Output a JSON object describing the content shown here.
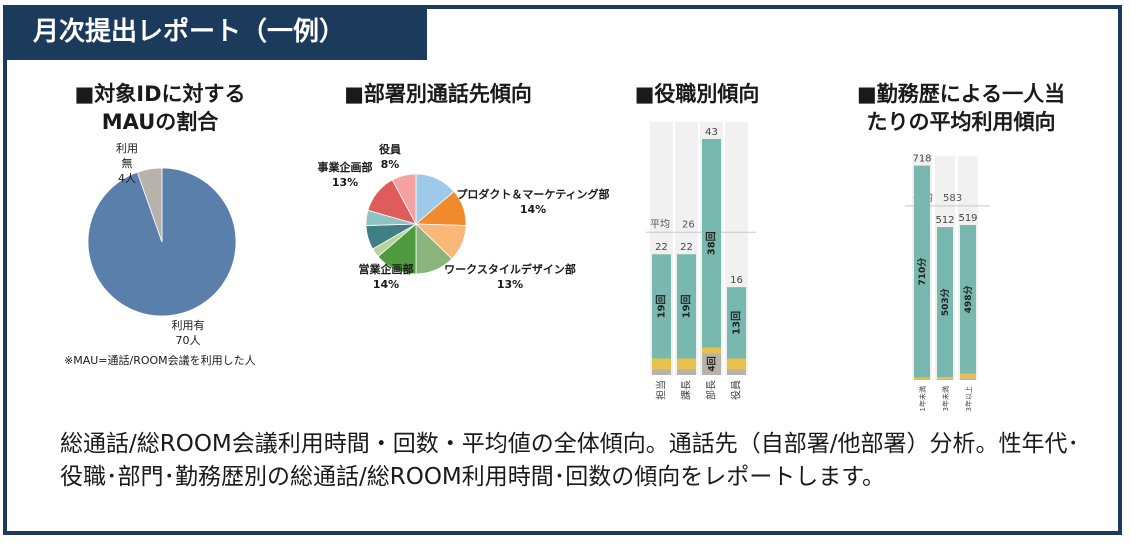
{
  "header": {
    "title": "月次提出レポート（一例）"
  },
  "sections": {
    "mau": {
      "line1": "■対象IDに対する",
      "line2": "MAUの割合"
    },
    "dept": {
      "title": "■部署別通話先傾向"
    },
    "role": {
      "title": "■役職別傾向"
    },
    "tenure": {
      "line1": "■勤務歴による一人当",
      "line2": "たりの平均利用傾向"
    }
  },
  "footnote": "※MAU=通話/ROOM会議を利用した人",
  "description": "総通話/総ROOM会議利用時間・回数・平均値の全体傾向。通話先（自部署/他部署）分析。性年代･役職･部門･勤務歴別の総通話/総ROOM利用時間･回数の傾向をレポートします。",
  "chart_data": [
    {
      "type": "pie",
      "labels": [
        "利用有",
        "利用無"
      ],
      "values": [
        70,
        4
      ],
      "value_labels": [
        "70人",
        "4人"
      ],
      "colors": [
        "#5a7fab",
        "#b7b2aa"
      ]
    },
    {
      "type": "pie",
      "slices": [
        {
          "label": "プロダクト＆マーケティング部",
          "pct": "14%",
          "value": 14,
          "color": "#9ecae9"
        },
        {
          "label": "",
          "pct": "",
          "value": 12,
          "color": "#f08a2c"
        },
        {
          "label": "",
          "pct": "",
          "value": 12,
          "color": "#f9b87a"
        },
        {
          "label": "ワークスタイルデザイン部",
          "pct": "13%",
          "value": 13,
          "color": "#8ab47a"
        },
        {
          "label": "営業企画部",
          "pct": "14%",
          "value": 14,
          "color": "#4e9a3e"
        },
        {
          "label": "",
          "pct": "",
          "value": 3,
          "color": "#b7d39a"
        },
        {
          "label": "",
          "pct": "",
          "value": 8,
          "color": "#3f7f85"
        },
        {
          "label": "",
          "pct": "",
          "value": 5,
          "color": "#8fc3c3"
        },
        {
          "label": "事業企画部",
          "pct": "13%",
          "value": 13,
          "color": "#e05b5b"
        },
        {
          "label": "役員",
          "pct": "8%",
          "value": 8,
          "color": "#f4a1a1"
        }
      ]
    },
    {
      "type": "bar",
      "categories": [
        "担当",
        "課長",
        "部長",
        "役員"
      ],
      "totals": [
        22,
        22,
        43,
        16
      ],
      "inner_labels": [
        "19回",
        "19回",
        "38回",
        "13回"
      ],
      "series": [
        {
          "values": [
            19,
            19,
            38,
            13
          ],
          "color": "#78b8ae"
        },
        {
          "values": [
            2,
            2,
            1,
            2
          ],
          "color": "#e8c14a"
        },
        {
          "values": [
            1,
            1,
            4,
            1
          ],
          "color": "#b7b2aa"
        }
      ],
      "extra_label": {
        "index": 2,
        "text": "4回"
      },
      "average": {
        "label": "平均",
        "value": 26
      },
      "ylim": [
        0,
        45
      ]
    },
    {
      "type": "bar",
      "categories": [
        "1年未満",
        "3年未満",
        "3年以上"
      ],
      "totals": [
        718,
        512,
        519
      ],
      "inner_labels": [
        "710分",
        "503分",
        "498分"
      ],
      "series": [
        {
          "values": [
            710,
            503,
            498
          ],
          "color": "#78b8ae"
        },
        {
          "values": [
            5,
            5,
            15
          ],
          "color": "#e8c14a"
        },
        {
          "values": [
            3,
            4,
            6
          ],
          "color": "#b7b2aa"
        }
      ],
      "average": {
        "label": "平均",
        "value": 583
      },
      "ylim": [
        0,
        730
      ]
    }
  ]
}
